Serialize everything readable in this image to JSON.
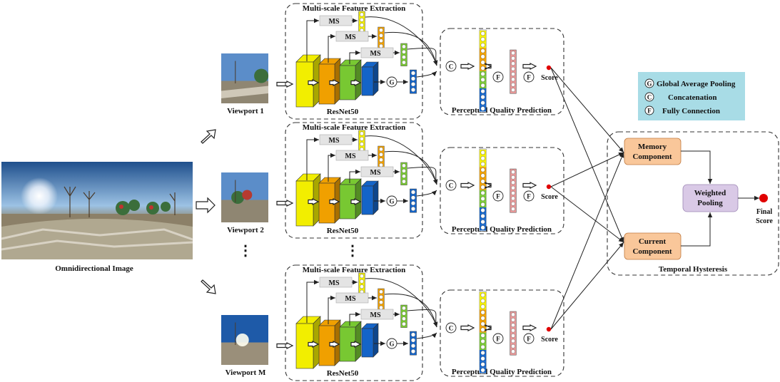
{
  "input": {
    "label": "Omnidirectional Image"
  },
  "viewports": [
    {
      "label": "Viewport 1"
    },
    {
      "label": "Viewport 2"
    },
    {
      "label": "Viewport M"
    }
  ],
  "dots": "⋮",
  "branch": {
    "feature_title": "Multi-scale Feature Extraction",
    "ms_label": "MS",
    "backbone": "ResNet50",
    "gap_symbol": "G",
    "concat_symbol": "C",
    "fc_symbol": "F",
    "prediction_title": "Perceptual Quality Prediction",
    "score_label": "Score"
  },
  "legend": {
    "items": [
      {
        "symbol": "G",
        "text": "Global Average Pooling"
      },
      {
        "symbol": "C",
        "text": "Concatenation"
      },
      {
        "symbol": "F",
        "text": "Fully Connection"
      }
    ]
  },
  "temporal": {
    "memory": [
      "Memory",
      "Component"
    ],
    "current": [
      "Current",
      "Component"
    ],
    "pooling": [
      "Weighted",
      "Pooling"
    ],
    "final": [
      "Final",
      "Score"
    ],
    "title": "Temporal Hysteresis"
  },
  "colors": {
    "yellow": "#f2ee00",
    "orange": "#f0a000",
    "green": "#78c832",
    "blue": "#1464c8",
    "pink": "#e89898",
    "score_dot": "#e00000",
    "legend_bg": "#a8dce6",
    "orange_box": "#f9c79a",
    "purple_box": "#d9c9e6"
  }
}
